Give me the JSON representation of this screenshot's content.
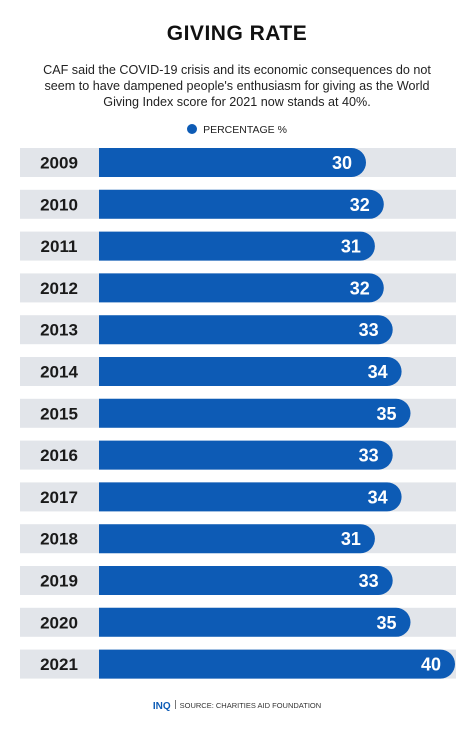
{
  "chart_data": {
    "type": "bar",
    "orientation": "horizontal",
    "title": "GIVING RATE",
    "subtitle": "CAF said the COVID-19 crisis and its economic consequences do not seem to have dampened people's enthusiasm for giving as the World Giving Index score for 2021 now stands at 40%.",
    "legend": "PERCENTAGE %",
    "categories": [
      "2009",
      "2010",
      "2011",
      "2012",
      "2013",
      "2014",
      "2015",
      "2016",
      "2017",
      "2018",
      "2019",
      "2020",
      "2021"
    ],
    "values": [
      30,
      32,
      31,
      32,
      33,
      34,
      35,
      33,
      34,
      31,
      33,
      35,
      40
    ],
    "xlim": [
      0,
      40
    ],
    "grid": false
  },
  "colors": {
    "bar": "#0d5bb5",
    "track": "#e2e5ea",
    "label": "#1a1a1a",
    "value_text": "#ffffff"
  },
  "footer": {
    "brand": "INQ",
    "source": "SOURCE: CHARITIES AID FOUNDATION"
  }
}
